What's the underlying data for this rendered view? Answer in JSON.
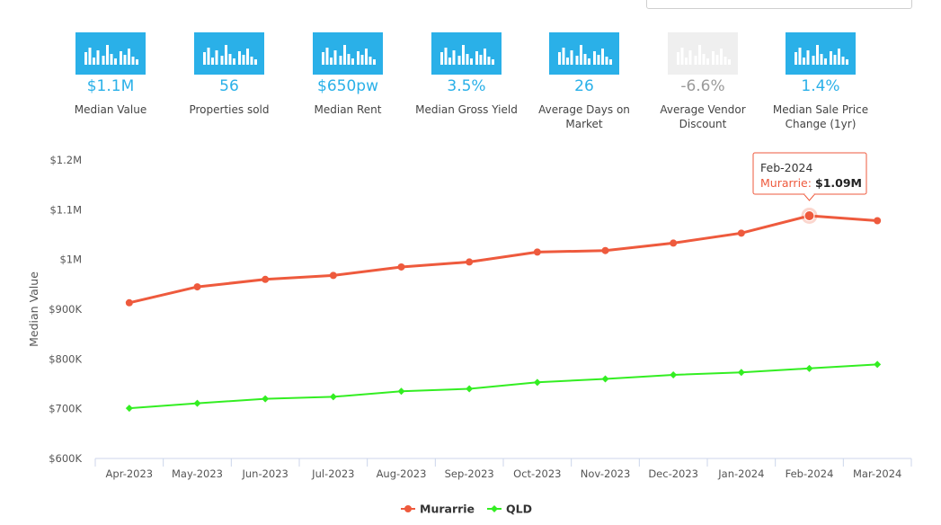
{
  "tiles": [
    {
      "value": "$1.1M",
      "label": "Median Value",
      "enabled": true
    },
    {
      "value": "56",
      "label": "Properties sold",
      "enabled": true
    },
    {
      "value": "$650pw",
      "label": "Median Rent",
      "enabled": true
    },
    {
      "value": "3.5%",
      "label": "Median Gross Yield",
      "enabled": true
    },
    {
      "value": "26",
      "label": "Average Days on Market",
      "enabled": true
    },
    {
      "value": "-6.6%",
      "label": "Average Vendor Discount",
      "enabled": false
    },
    {
      "value": "1.4%",
      "label": "Median Sale Price Change (1yr)",
      "enabled": true
    }
  ],
  "colors": {
    "tile_active": "#2ab0e8",
    "tile_inactive": "#efefef",
    "series_murrarrie": "#ee5a3d",
    "series_qld": "#33ee22"
  },
  "tooltip": {
    "date": "Feb-2024",
    "series": "Murarrie:",
    "value": "$1.09M"
  },
  "chart_data": {
    "type": "line",
    "title": "",
    "xlabel": "",
    "ylabel": "Median Value",
    "ylim": [
      600000,
      1200000
    ],
    "yticks": [
      600000,
      700000,
      800000,
      900000,
      1000000,
      1100000,
      1200000
    ],
    "yticklabels": [
      "$600K",
      "$700K",
      "$800K",
      "$900K",
      "$1M",
      "$1.1M",
      "$1.2M"
    ],
    "categories": [
      "Apr-2023",
      "May-2023",
      "Jun-2023",
      "Jul-2023",
      "Aug-2023",
      "Sep-2023",
      "Oct-2023",
      "Nov-2023",
      "Dec-2023",
      "Jan-2024",
      "Feb-2024",
      "Mar-2024"
    ],
    "series": [
      {
        "name": "Murarrie",
        "color": "#ee5a3d",
        "values": [
          913000,
          945000,
          960000,
          968000,
          985000,
          995000,
          1015000,
          1018000,
          1033000,
          1053000,
          1088000,
          1078000
        ]
      },
      {
        "name": "QLD",
        "color": "#33ee22",
        "values": [
          701000,
          711000,
          720000,
          724000,
          735000,
          740000,
          753000,
          760000,
          768000,
          773000,
          781000,
          789000
        ]
      }
    ],
    "highlight": {
      "series": "Murarrie",
      "category": "Feb-2024"
    },
    "legend_position": "bottom-center",
    "grid": false
  }
}
